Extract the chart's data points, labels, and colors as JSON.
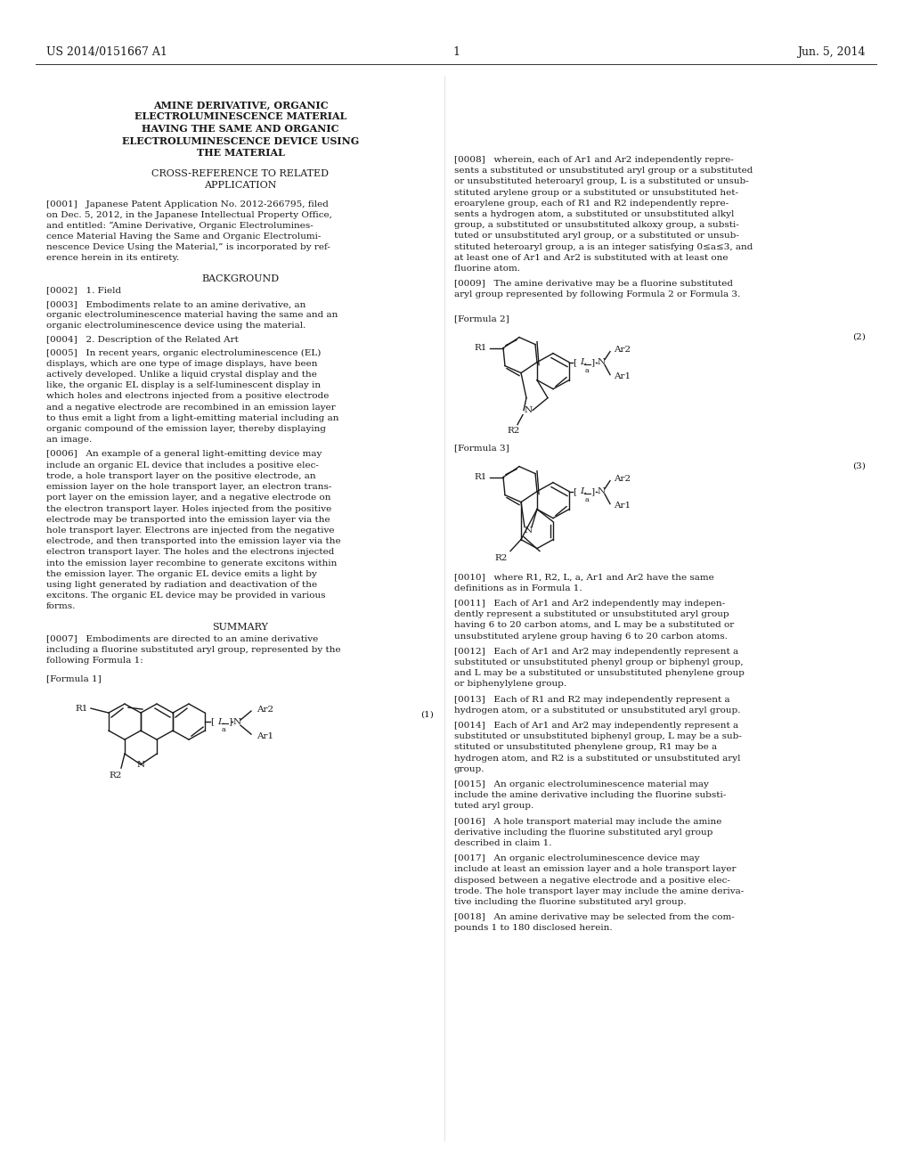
{
  "bg_color": "#ffffff",
  "text_color": "#1a1a1a",
  "header_left": "US 2014/0151667 A1",
  "header_right": "Jun. 5, 2014",
  "para0001": "[0001]   Japanese Patent Application No. 2012-266795, filed\non Dec. 5, 2012, in the Japanese Intellectual Property Office,\nand entitled: “Amine Derivative, Organic Electrolumines-\ncence Material Having the Same and Organic Electrolumi-\nnescence Device Using the Material,” is incorporated by ref-\nerence herein in its entirety.",
  "background_title": "BACKGROUND",
  "para0002": "[0002]   1. Field",
  "para0003": "[0003]   Embodiments relate to an amine derivative, an\norganic electroluminescence material having the same and an\norganic electroluminescence device using the material.",
  "para0004": "[0004]   2. Description of the Related Art",
  "para0005_lines": [
    "[0005]   In recent years, organic electroluminescence (EL)",
    "displays, which are one type of image displays, have been",
    "actively developed. Unlike a liquid crystal display and the",
    "like, the organic EL display is a self-luminescent display in",
    "which holes and electrons injected from a positive electrode",
    "and a negative electrode are recombined in an emission layer",
    "to thus emit a light from a light-emitting material including an",
    "organic compound of the emission layer, thereby displaying",
    "an image."
  ],
  "para0006_lines": [
    "[0006]   An example of a general light-emitting device may",
    "include an organic EL device that includes a positive elec-",
    "trode, a hole transport layer on the positive electrode, an",
    "emission layer on the hole transport layer, an electron trans-",
    "port layer on the emission layer, and a negative electrode on",
    "the electron transport layer. Holes injected from the positive",
    "electrode may be transported into the emission layer via the",
    "hole transport layer. Electrons are injected from the negative",
    "electrode, and then transported into the emission layer via the",
    "electron transport layer. The holes and the electrons injected",
    "into the emission layer recombine to generate excitons within",
    "the emission layer. The organic EL device emits a light by",
    "using light generated by radiation and deactivation of the",
    "excitons. The organic EL device may be provided in various",
    "forms."
  ],
  "summary_title": "SUMMARY",
  "para0007_lines": [
    "[0007]   Embodiments are directed to an amine derivative",
    "including a fluorine substituted aryl group, represented by the",
    "following Formula 1:"
  ],
  "para0008_lines": [
    "[0008]   wherein, each of Ar1 and Ar2 independently repre-",
    "sents a substituted or unsubstituted aryl group or a substituted",
    "or unsubstituted heteroaryl group, L is a substituted or unsub-",
    "stituted arylene group or a substituted or unsubstituted het-",
    "eroarylene group, each of R1 and R2 independently repre-",
    "sents a hydrogen atom, a substituted or unsubstituted alkyl",
    "group, a substituted or unsubstituted alkoxy group, a substi-",
    "tuted or unsubstituted aryl group, or a substituted or unsub-",
    "stituted heteroaryl group, a is an integer satisfying 0≤a≤3, and",
    "at least one of Ar1 and Ar2 is substituted with at least one",
    "fluorine atom."
  ],
  "para0009_lines": [
    "[0009]   The amine derivative may be a fluorine substituted",
    "aryl group represented by following Formula 2 or Formula 3."
  ],
  "para0010_lines": [
    "[0010]   where R1, R2, L, a, Ar1 and Ar2 have the same",
    "definitions as in Formula 1."
  ],
  "para0011_lines": [
    "[0011]   Each of Ar1 and Ar2 independently may indepen-",
    "dently represent a substituted or unsubstituted aryl group",
    "having 6 to 20 carbon atoms, and L may be a substituted or",
    "unsubstituted arylene group having 6 to 20 carbon atoms."
  ],
  "para0012_lines": [
    "[0012]   Each of Ar1 and Ar2 may independently represent a",
    "substituted or unsubstituted phenyl group or biphenyl group,",
    "and L may be a substituted or unsubstituted phenylene group",
    "or biphenylylene group."
  ],
  "para0013_lines": [
    "[0013]   Each of R1 and R2 may independently represent a",
    "hydrogen atom, or a substituted or unsubstituted aryl group."
  ],
  "para0014_lines": [
    "[0014]   Each of Ar1 and Ar2 may independently represent a",
    "substituted or unsubstituted biphenyl group, L may be a sub-",
    "stituted or unsubstituted phenylene group, R1 may be a",
    "hydrogen atom, and R2 is a substituted or unsubstituted aryl",
    "group."
  ],
  "para0015_lines": [
    "[0015]   An organic electroluminescence material may",
    "include the amine derivative including the fluorine substi-",
    "tuted aryl group."
  ],
  "para0016_lines": [
    "[0016]   A hole transport material may include the amine",
    "derivative including the fluorine substituted aryl group",
    "described in claim 1."
  ],
  "para0017_lines": [
    "[0017]   An organic electroluminescence device may",
    "include at least an emission layer and a hole transport layer",
    "disposed between a negative electrode and a positive elec-",
    "trode. The hole transport layer may include the amine deriva-",
    "tive including the fluorine substituted aryl group."
  ],
  "para0018_lines": [
    "[0018]   An amine derivative may be selected from the com-",
    "pounds 1 to 180 disclosed herein."
  ]
}
